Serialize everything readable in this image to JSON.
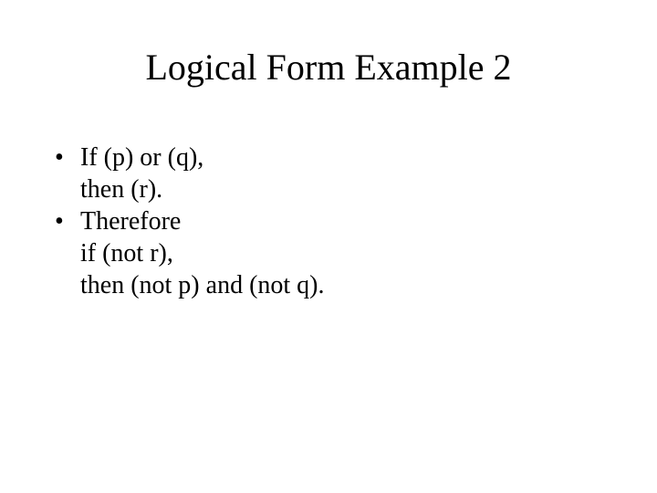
{
  "slide": {
    "title": "Logical Form Example 2",
    "bullets": [
      {
        "marker": "•",
        "lines": [
          "If (p) or (q),",
          "then (r)."
        ]
      },
      {
        "marker": "•",
        "lines": [
          "Therefore",
          "if (not r),",
          "then (not p) and (not q)."
        ]
      }
    ]
  },
  "style": {
    "background_color": "#ffffff",
    "text_color": "#000000",
    "title_fontsize": 40,
    "body_fontsize": 28,
    "font_family": "Times New Roman"
  }
}
